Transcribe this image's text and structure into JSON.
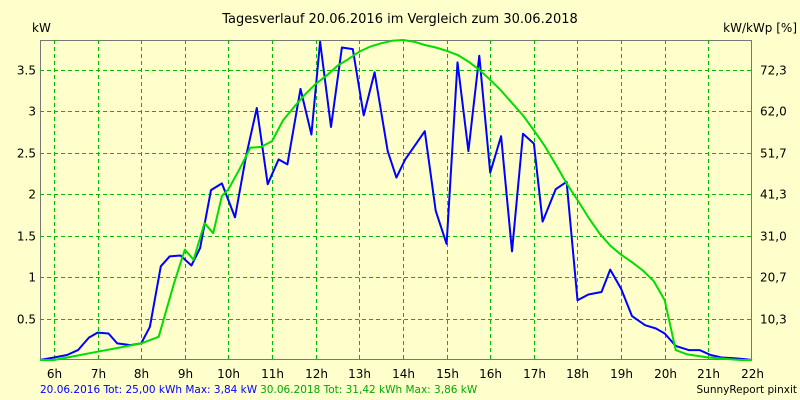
{
  "chart_data": {
    "type": "line",
    "title": "Tagesverlauf 20.06.2016 im Vergleich zum 30.06.2018",
    "ylabel_left": "kW",
    "ylabel_right": "kW/kWp [%]",
    "x_tick_labels": [
      "6h",
      "7h",
      "8h",
      "9h",
      "10h",
      "11h",
      "12h",
      "13h",
      "14h",
      "15h",
      "16h",
      "17h",
      "18h",
      "19h",
      "20h",
      "21h",
      "22h"
    ],
    "xlim": [
      5.68,
      22.0
    ],
    "ylim": [
      0,
      3.86
    ],
    "y_left_ticks": [
      "0.5",
      "1",
      "1.5",
      "2",
      "2.5",
      "3",
      "3.5"
    ],
    "y_right_ticks": [
      "10,3",
      "20,7",
      "31,0",
      "41,3",
      "51,7",
      "62,0",
      "72,3"
    ],
    "grid": true,
    "series": [
      {
        "name": "20.06.2016",
        "color": "#0000ff",
        "x": [
          5.68,
          6.0,
          6.3,
          6.55,
          6.8,
          7.0,
          7.25,
          7.45,
          7.75,
          8.0,
          8.2,
          8.45,
          8.65,
          8.9,
          9.15,
          9.35,
          9.6,
          9.85,
          10.15,
          10.4,
          10.65,
          10.9,
          11.15,
          11.35,
          11.65,
          11.9,
          12.1,
          12.35,
          12.6,
          12.85,
          13.1,
          13.35,
          13.65,
          13.85,
          14.05,
          14.5,
          14.75,
          15.0,
          15.25,
          15.5,
          15.75,
          16.0,
          16.25,
          16.5,
          16.75,
          17.0,
          17.2,
          17.5,
          17.75,
          18.0,
          18.25,
          18.55,
          18.75,
          19.0,
          19.25,
          19.55,
          19.8,
          20.0,
          20.25,
          20.55,
          20.8,
          21.05,
          21.3,
          21.6,
          21.85,
          22.0
        ],
        "values": [
          0.0,
          0.03,
          0.06,
          0.12,
          0.27,
          0.33,
          0.32,
          0.2,
          0.18,
          0.2,
          0.4,
          1.13,
          1.25,
          1.26,
          1.14,
          1.35,
          2.05,
          2.13,
          1.72,
          2.45,
          3.04,
          2.12,
          2.42,
          2.36,
          3.27,
          2.72,
          3.84,
          2.81,
          3.77,
          3.75,
          2.95,
          3.47,
          2.52,
          2.2,
          2.42,
          2.76,
          1.8,
          1.4,
          3.59,
          2.52,
          3.67,
          2.26,
          2.7,
          1.31,
          2.73,
          2.61,
          1.67,
          2.06,
          2.15,
          0.72,
          0.79,
          0.82,
          1.09,
          0.86,
          0.53,
          0.42,
          0.38,
          0.32,
          0.17,
          0.12,
          0.12,
          0.06,
          0.03,
          0.02,
          0.01,
          0.0
        ]
      },
      {
        "name": "30.06.2018",
        "color": "#00dd00",
        "x": [
          5.68,
          6.0,
          6.5,
          7.0,
          7.5,
          8.0,
          8.4,
          8.75,
          9.0,
          9.2,
          9.45,
          9.65,
          9.85,
          10.0,
          10.25,
          10.5,
          10.75,
          11.0,
          11.25,
          11.5,
          11.75,
          12.0,
          12.25,
          12.5,
          12.75,
          13.0,
          13.25,
          13.5,
          13.75,
          14.0,
          14.25,
          14.5,
          14.75,
          15.0,
          15.25,
          15.5,
          15.75,
          16.0,
          16.25,
          16.5,
          16.75,
          17.0,
          17.25,
          17.5,
          17.75,
          18.0,
          18.25,
          18.5,
          18.75,
          19.0,
          19.25,
          19.5,
          19.75,
          20.0,
          20.25,
          20.5,
          20.75,
          21.0,
          21.25,
          21.5,
          21.75,
          22.0
        ],
        "values": [
          0.0,
          0.0,
          0.05,
          0.1,
          0.15,
          0.2,
          0.28,
          0.92,
          1.33,
          1.21,
          1.65,
          1.53,
          1.98,
          2.06,
          2.3,
          2.56,
          2.57,
          2.64,
          2.89,
          3.05,
          3.2,
          3.33,
          3.43,
          3.55,
          3.63,
          3.72,
          3.78,
          3.82,
          3.85,
          3.86,
          3.84,
          3.8,
          3.77,
          3.73,
          3.68,
          3.6,
          3.5,
          3.38,
          3.25,
          3.1,
          2.95,
          2.77,
          2.58,
          2.36,
          2.13,
          1.93,
          1.72,
          1.53,
          1.38,
          1.27,
          1.18,
          1.08,
          0.95,
          0.72,
          0.12,
          0.07,
          0.05,
          0.03,
          0.02,
          0.01,
          0.0,
          0.0
        ]
      }
    ]
  },
  "footer": {
    "s1_text": "20.06.2016 Tot: 25,00 kWh Max: 3,84 kW",
    "s2_text": "30.06.2018 Tot: 31,42 kWh Max: 3,86 kW",
    "credit": "SunnyReport pinxit"
  },
  "colors": {
    "background": "#ffffcc",
    "grid": "#00bb00",
    "series1": "#0000ff",
    "series2": "#00dd00"
  }
}
